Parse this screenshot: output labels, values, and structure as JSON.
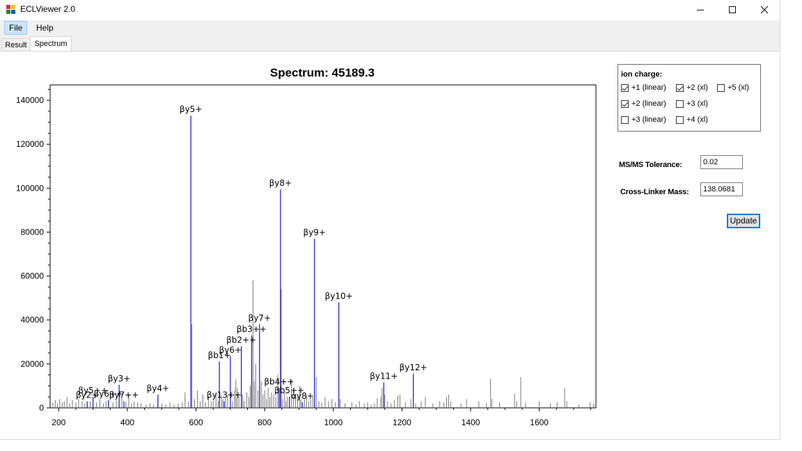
{
  "window": {
    "title": "ECLViewer 2.0",
    "controls": [
      "minimize-icon",
      "maximize-icon",
      "close-icon"
    ]
  },
  "menu": {
    "items": [
      {
        "label": "File"
      },
      {
        "label": "Help"
      }
    ]
  },
  "tabs": [
    {
      "label": "Result"
    },
    {
      "label": "Spectrum",
      "selected": true
    }
  ],
  "ion_charge": {
    "title": "ion charge:",
    "options": [
      {
        "label": "+1 (linear)",
        "checked": true
      },
      {
        "label": "+2 (xl)",
        "checked": true
      },
      {
        "label": "+5 (xl)",
        "checked": false
      },
      {
        "label": "+2 (linear)",
        "checked": true
      },
      {
        "label": "+3 (xl)",
        "checked": false
      },
      {
        "label": "+3 (linear)",
        "checked": false
      },
      {
        "label": "+4 (xl)",
        "checked": false
      }
    ]
  },
  "tolerance": {
    "label": "MS/MS Tolerance:",
    "value": "0.02"
  },
  "crosslinker": {
    "label": "Cross-Linker Mass:",
    "value": "138.0681"
  },
  "update_label": "Update",
  "chart_data": {
    "type": "bar",
    "title": "Spectrum: 45189.3",
    "xlabel": "",
    "ylabel": "",
    "xlim": [
      175,
      1765
    ],
    "ylim": [
      0,
      147000
    ],
    "x_ticks": [
      200,
      400,
      600,
      800,
      1000,
      1200,
      1400,
      1600
    ],
    "y_ticks": [
      0,
      20000,
      40000,
      60000,
      80000,
      100000,
      120000,
      140000
    ],
    "colors": {
      "annotated": "#2222dd",
      "unannotated": "#777777"
    },
    "annotated_peaks": [
      {
        "label": "βy2+",
        "x": 283,
        "y": 3000
      },
      {
        "label": "βy5++",
        "x": 300,
        "y": 5000
      },
      {
        "label": "βy6++",
        "x": 345,
        "y": 3500
      },
      {
        "label": "βy7++",
        "x": 390,
        "y": 3000
      },
      {
        "label": "βy3+",
        "x": 376,
        "y": 10500
      },
      {
        "label": "βy4+",
        "x": 489,
        "y": 6000
      },
      {
        "label": "βy5+",
        "x": 585,
        "y": 133000
      },
      {
        "label": "βy13++",
        "x": 682,
        "y": 3000
      },
      {
        "label": "βb1+",
        "x": 668,
        "y": 21000
      },
      {
        "label": "βy6+",
        "x": 700,
        "y": 23500
      },
      {
        "label": "βb2++",
        "x": 732,
        "y": 28000
      },
      {
        "label": "βb3++",
        "x": 762,
        "y": 33000
      },
      {
        "label": "βy7+",
        "x": 785,
        "y": 38000
      },
      {
        "label": "βb4++",
        "x": 842,
        "y": 9000
      },
      {
        "label": "βy8+",
        "x": 846,
        "y": 99500
      },
      {
        "label": "βb5++",
        "x": 872,
        "y": 5000
      },
      {
        "label": "αy8+",
        "x": 910,
        "y": 2500
      },
      {
        "label": "βy9+",
        "x": 945,
        "y": 77000
      },
      {
        "label": "βy10+",
        "x": 1016,
        "y": 48000
      },
      {
        "label": "βy11+",
        "x": 1147,
        "y": 11500
      },
      {
        "label": "βy12+",
        "x": 1233,
        "y": 15500
      }
    ],
    "unannotated_peaks": [
      [
        183,
        2500
      ],
      [
        190,
        3500
      ],
      [
        196,
        2000
      ],
      [
        203,
        4000
      ],
      [
        210,
        2500
      ],
      [
        216,
        3000
      ],
      [
        224,
        5000
      ],
      [
        232,
        2000
      ],
      [
        240,
        3500
      ],
      [
        250,
        2500
      ],
      [
        258,
        4000
      ],
      [
        268,
        3000
      ],
      [
        276,
        2000
      ],
      [
        292,
        3000
      ],
      [
        310,
        2500
      ],
      [
        320,
        4000
      ],
      [
        330,
        2000
      ],
      [
        338,
        3000
      ],
      [
        358,
        2500
      ],
      [
        368,
        3500
      ],
      [
        384,
        4500
      ],
      [
        396,
        2500
      ],
      [
        404,
        6000
      ],
      [
        412,
        2000
      ],
      [
        420,
        3000
      ],
      [
        430,
        2500
      ],
      [
        440,
        2000
      ],
      [
        455,
        1500
      ],
      [
        466,
        2000
      ],
      [
        476,
        1500
      ],
      [
        500,
        2000
      ],
      [
        512,
        1500
      ],
      [
        524,
        2500
      ],
      [
        536,
        1500
      ],
      [
        548,
        2000
      ],
      [
        560,
        2500
      ],
      [
        568,
        7000
      ],
      [
        578,
        3000
      ],
      [
        588,
        38000
      ],
      [
        596,
        4000
      ],
      [
        604,
        8000
      ],
      [
        612,
        3000
      ],
      [
        620,
        6000
      ],
      [
        628,
        2500
      ],
      [
        636,
        5000
      ],
      [
        644,
        3000
      ],
      [
        650,
        4000
      ],
      [
        658,
        7000
      ],
      [
        664,
        3000
      ],
      [
        674,
        5000
      ],
      [
        678,
        4000
      ],
      [
        686,
        4500
      ],
      [
        692,
        6000
      ],
      [
        706,
        3000
      ],
      [
        712,
        8000
      ],
      [
        716,
        13000
      ],
      [
        720,
        9000
      ],
      [
        725,
        5000
      ],
      [
        736,
        6000
      ],
      [
        740,
        3000
      ],
      [
        748,
        7000
      ],
      [
        754,
        5000
      ],
      [
        758,
        10000
      ],
      [
        766,
        58000
      ],
      [
        770,
        12000
      ],
      [
        774,
        20000
      ],
      [
        780,
        8000
      ],
      [
        790,
        12000
      ],
      [
        795,
        6000
      ],
      [
        800,
        8000
      ],
      [
        805,
        4000
      ],
      [
        810,
        9000
      ],
      [
        815,
        5000
      ],
      [
        820,
        7000
      ],
      [
        826,
        6000
      ],
      [
        832,
        5000
      ],
      [
        838,
        15000
      ],
      [
        848,
        54000
      ],
      [
        852,
        4000
      ],
      [
        858,
        7000
      ],
      [
        862,
        3000
      ],
      [
        866,
        5000
      ],
      [
        878,
        13000
      ],
      [
        884,
        9000
      ],
      [
        890,
        6000
      ],
      [
        896,
        5000
      ],
      [
        902,
        10000
      ],
      [
        906,
        4000
      ],
      [
        916,
        4000
      ],
      [
        922,
        6000
      ],
      [
        928,
        3000
      ],
      [
        934,
        4000
      ],
      [
        940,
        5000
      ],
      [
        950,
        14000
      ],
      [
        958,
        3000
      ],
      [
        966,
        2500
      ],
      [
        976,
        5000
      ],
      [
        986,
        3000
      ],
      [
        996,
        4000
      ],
      [
        1006,
        2500
      ],
      [
        1020,
        4000
      ],
      [
        1034,
        2000
      ],
      [
        1054,
        2500
      ],
      [
        1066,
        1500
      ],
      [
        1076,
        3000
      ],
      [
        1090,
        2000
      ],
      [
        1100,
        2500
      ],
      [
        1110,
        1500
      ],
      [
        1120,
        2000
      ],
      [
        1128,
        4500
      ],
      [
        1138,
        5000
      ],
      [
        1142,
        9000
      ],
      [
        1150,
        6000
      ],
      [
        1158,
        3000
      ],
      [
        1168,
        2000
      ],
      [
        1178,
        3500
      ],
      [
        1188,
        5500
      ],
      [
        1194,
        6000
      ],
      [
        1210,
        2500
      ],
      [
        1226,
        4000
      ],
      [
        1240,
        2000
      ],
      [
        1256,
        3000
      ],
      [
        1268,
        5000
      ],
      [
        1290,
        2000
      ],
      [
        1310,
        3000
      ],
      [
        1322,
        2500
      ],
      [
        1330,
        5000
      ],
      [
        1336,
        6000
      ],
      [
        1342,
        3000
      ],
      [
        1372,
        2000
      ],
      [
        1388,
        4000
      ],
      [
        1424,
        3000
      ],
      [
        1446,
        2000
      ],
      [
        1458,
        13000
      ],
      [
        1462,
        4000
      ],
      [
        1484,
        2500
      ],
      [
        1528,
        6500
      ],
      [
        1534,
        3000
      ],
      [
        1546,
        14000
      ],
      [
        1560,
        2500
      ],
      [
        1600,
        3000
      ],
      [
        1632,
        2000
      ],
      [
        1652,
        2500
      ],
      [
        1674,
        9000
      ],
      [
        1680,
        3000
      ],
      [
        1715,
        1500
      ],
      [
        1748,
        2500
      ],
      [
        1758,
        2000
      ]
    ]
  }
}
